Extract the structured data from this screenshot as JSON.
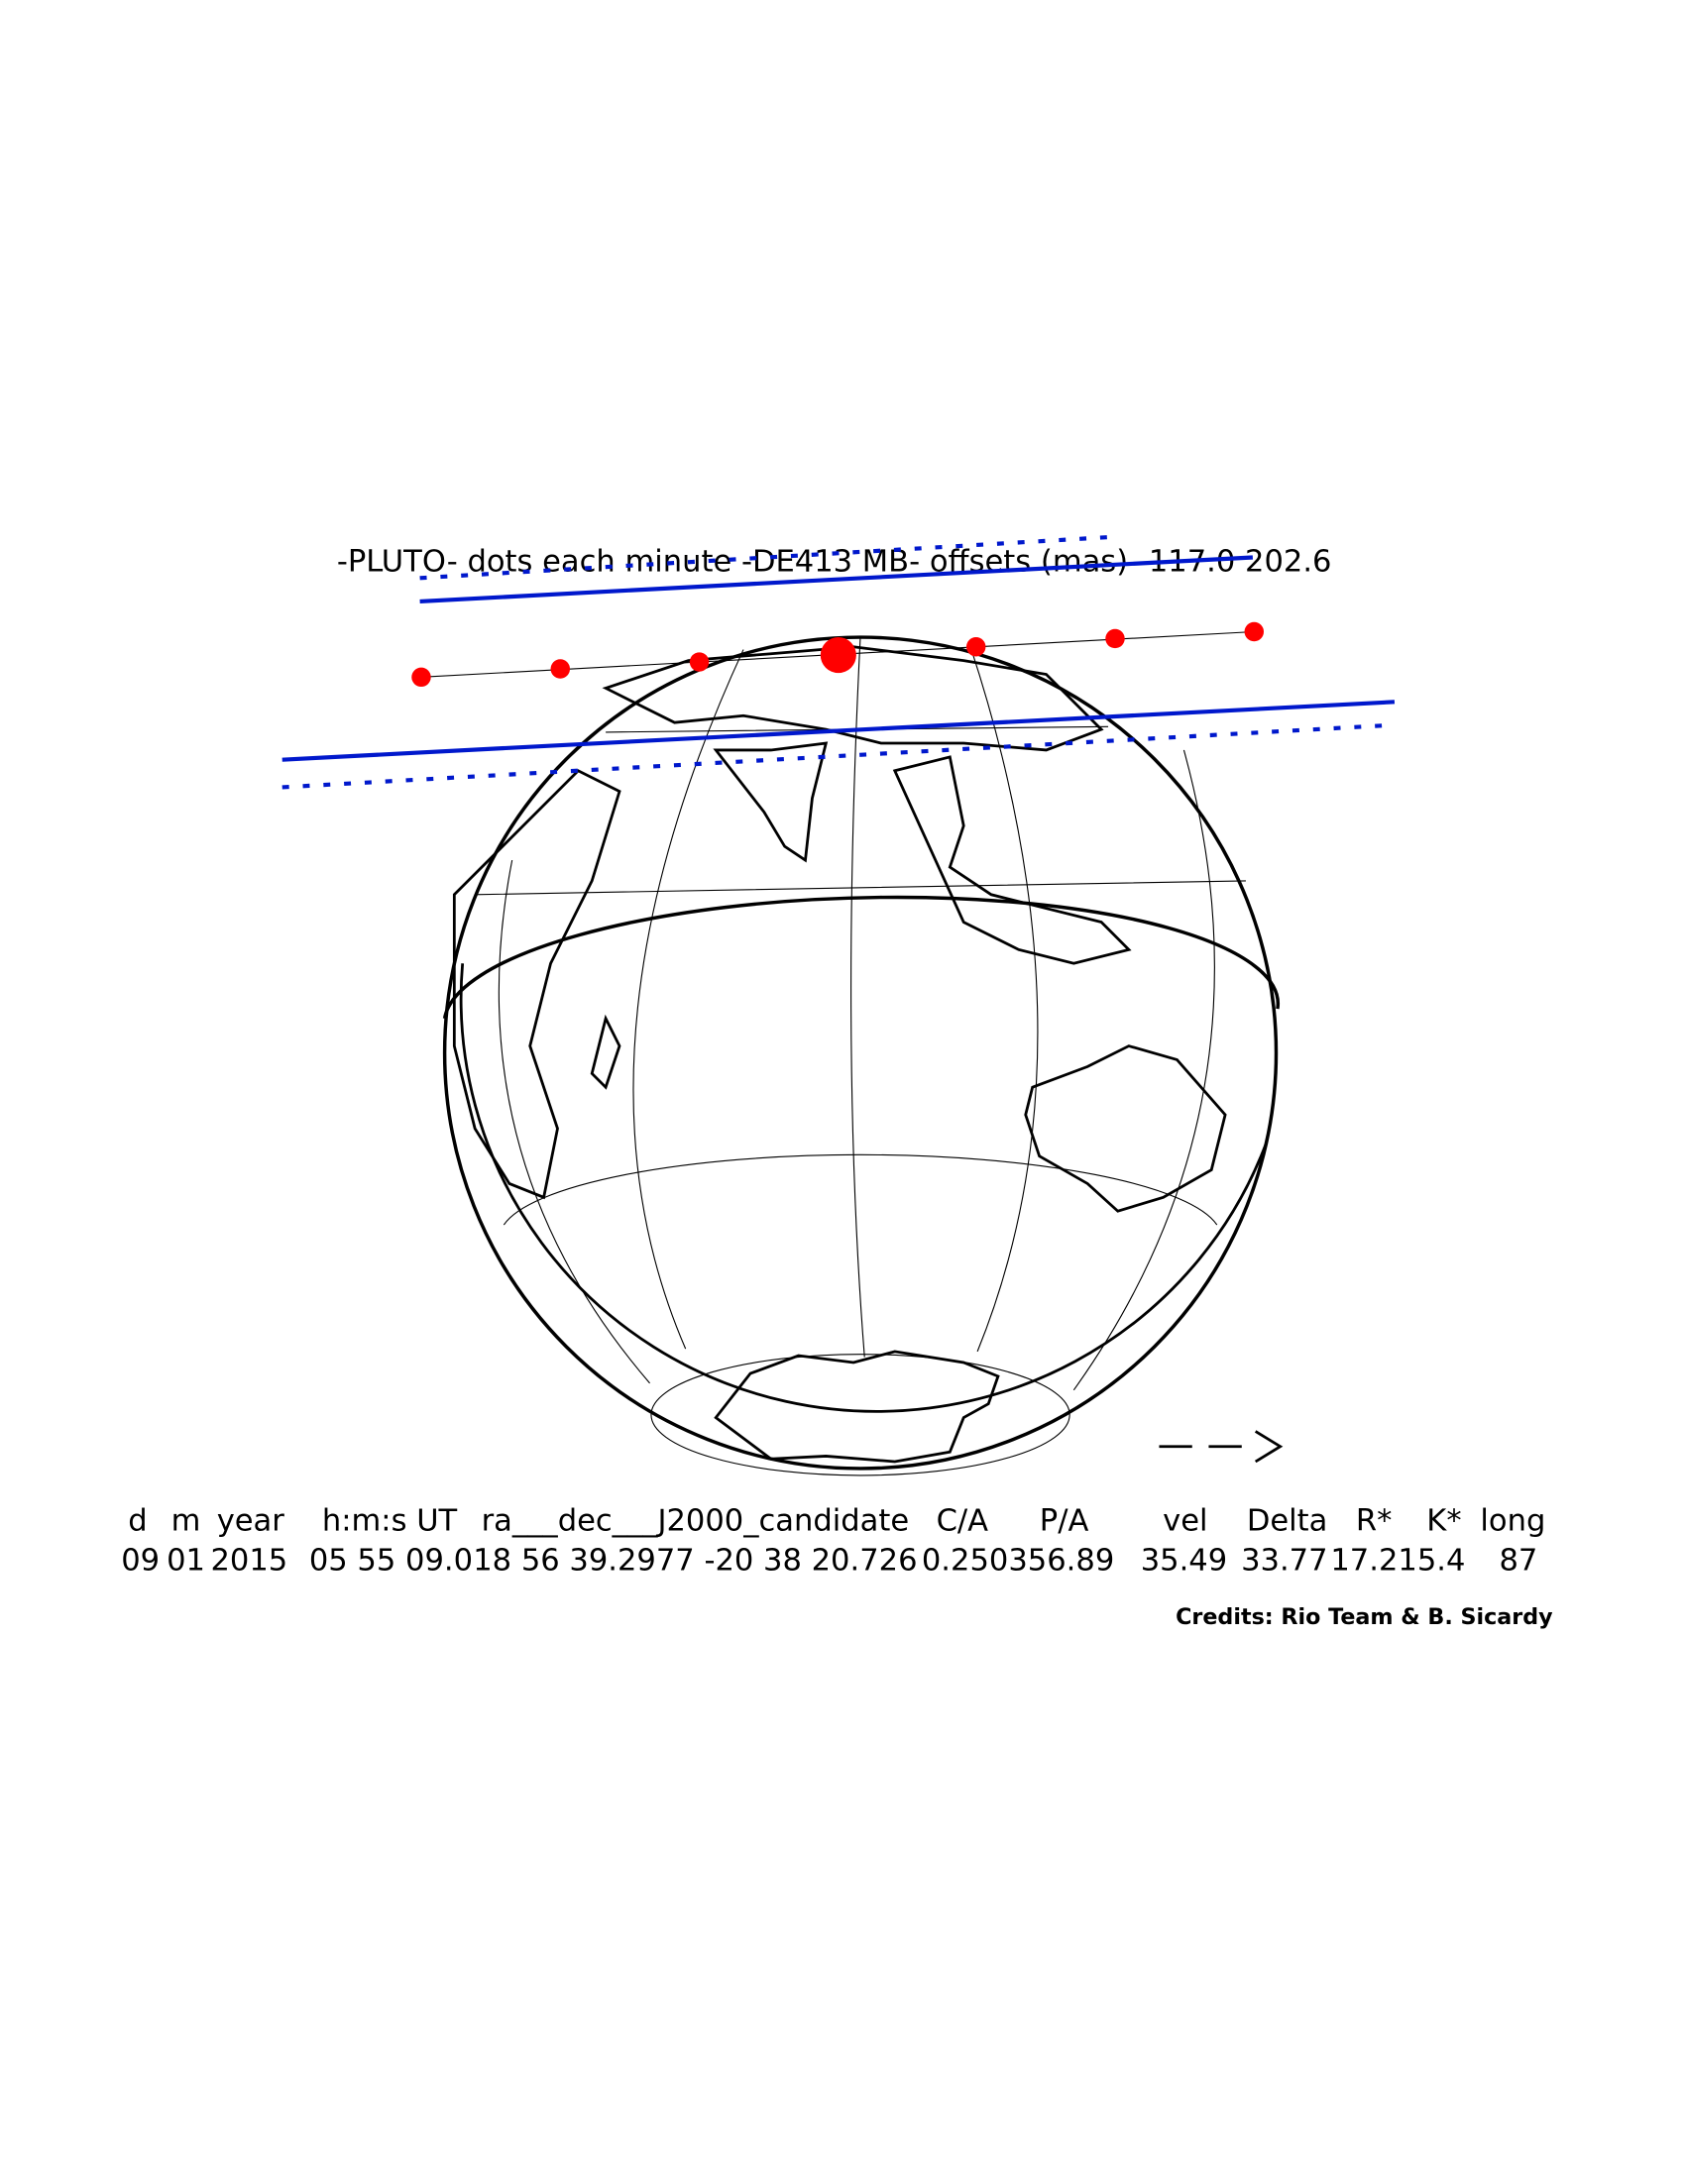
{
  "title": "-PLUTO- dots each minute -DE413 MB- offsets (mas) -117.0 202.6",
  "table": {
    "headers": [
      "d",
      "m",
      "year",
      "h:m:s UT",
      "ra___dec___J2000_candidate",
      "C/A",
      "P/A",
      "vel",
      "Delta",
      "R*",
      "K*",
      "long"
    ],
    "values": [
      "09",
      "01",
      "2015",
      "05 55 09.0",
      "18 56 39.2977 -20 38 20.726",
      "0.250",
      "356.89",
      "35.49",
      "33.77",
      "17.2",
      "15.4",
      "87"
    ]
  },
  "credits": "Credits: Rio Team & B. Sicardy"
}
